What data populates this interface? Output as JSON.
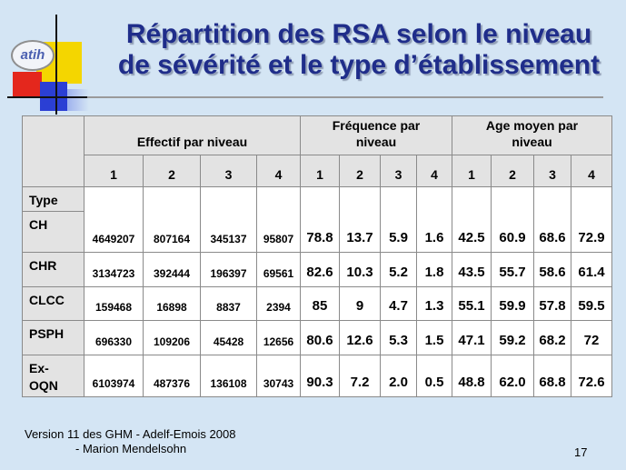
{
  "slide": {
    "title_line1": "Répartition des RSA selon le niveau",
    "title_line2": "de sévérité et le type d’établissement",
    "logo_text": "atih",
    "footer_line1": "Version 11 des GHM - Adelf-Emois 2008",
    "footer_line2": "- Marion Mendelsohn",
    "page_number": "17"
  },
  "colors": {
    "background": "#d4e5f4",
    "title": "#1f2d8a",
    "header_fill": "#e3e3e3",
    "cell_fill": "#ffffff",
    "logo_yellow": "#f4d600",
    "logo_red": "#e4271d",
    "logo_blue": "#2b3fd4"
  },
  "table": {
    "groups": [
      "Effectif par niveau",
      "Fréquence par niveau",
      "Age moyen par niveau"
    ],
    "levels": [
      "1",
      "2",
      "3",
      "4"
    ],
    "type_label": "Type",
    "rows": [
      {
        "label": "CH",
        "effectif": [
          "4649207",
          "807164",
          "345137",
          "95807"
        ],
        "frequence": [
          "78.8",
          "13.7",
          "5.9",
          "1.6"
        ],
        "age_moyen": [
          "42.5",
          "60.9",
          "68.6",
          "72.9"
        ]
      },
      {
        "label": "CHR",
        "effectif": [
          "3134723",
          "392444",
          "196397",
          "69561"
        ],
        "frequence": [
          "82.6",
          "10.3",
          "5.2",
          "1.8"
        ],
        "age_moyen": [
          "43.5",
          "55.7",
          "58.6",
          "61.4"
        ]
      },
      {
        "label": "CLCC",
        "effectif": [
          "159468",
          "16898",
          "8837",
          "2394"
        ],
        "frequence": [
          "85",
          "9",
          "4.7",
          "1.3"
        ],
        "age_moyen": [
          "55.1",
          "59.9",
          "57.8",
          "59.5"
        ]
      },
      {
        "label": "PSPH",
        "effectif": [
          "696330",
          "109206",
          "45428",
          "12656"
        ],
        "frequence": [
          "80.6",
          "12.6",
          "5.3",
          "1.5"
        ],
        "age_moyen": [
          "47.1",
          "59.2",
          "68.2",
          "72"
        ]
      },
      {
        "label": "Ex-OQN",
        "effectif": [
          "6103974",
          "487376",
          "136108",
          "30743"
        ],
        "frequence": [
          "90.3",
          "7.2",
          "2.0",
          "0.5"
        ],
        "age_moyen": [
          "48.8",
          "62.0",
          "68.8",
          "72.6"
        ]
      }
    ]
  }
}
